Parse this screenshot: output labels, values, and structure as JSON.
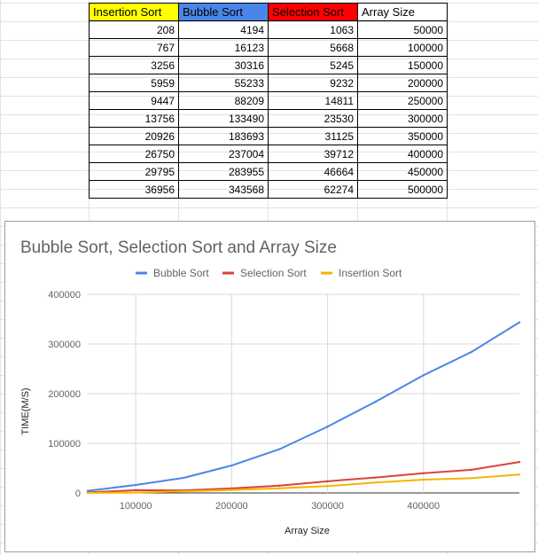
{
  "table": {
    "headers": [
      {
        "label": "Insertion Sort",
        "bg": "#ffff00"
      },
      {
        "label": "Bubble Sort",
        "bg": "#4a86e8"
      },
      {
        "label": "Selection Sort",
        "bg": "#ff0000"
      },
      {
        "label": "Array Size",
        "bg": "#ffffff"
      }
    ],
    "rows": [
      [
        "208",
        "4194",
        "1063",
        "50000"
      ],
      [
        "767",
        "16123",
        "5668",
        "100000"
      ],
      [
        "3256",
        "30316",
        "5245",
        "150000"
      ],
      [
        "5959",
        "55233",
        "9232",
        "200000"
      ],
      [
        "9447",
        "88209",
        "14811",
        "250000"
      ],
      [
        "13756",
        "133490",
        "23530",
        "300000"
      ],
      [
        "20926",
        "183693",
        "31125",
        "350000"
      ],
      [
        "26750",
        "237004",
        "39712",
        "400000"
      ],
      [
        "29795",
        "283955",
        "46664",
        "450000"
      ],
      [
        "36956",
        "343568",
        "62274",
        "500000"
      ]
    ]
  },
  "chart_data": {
    "type": "line",
    "title": "Bubble Sort, Selection Sort and Array Size",
    "xlabel": "Array Size",
    "ylabel": "TIME(M/S)",
    "xlim": [
      50000,
      500000
    ],
    "ylim": [
      0,
      400000
    ],
    "xticks": [
      "100000",
      "200000",
      "300000",
      "400000"
    ],
    "yticks": [
      "0",
      "100000",
      "200000",
      "300000",
      "400000"
    ],
    "grid": true,
    "legend_position": "top",
    "x": [
      50000,
      100000,
      150000,
      200000,
      250000,
      300000,
      350000,
      400000,
      450000,
      500000
    ],
    "series": [
      {
        "name": "Bubble Sort",
        "color": "#4a86e8",
        "values": [
          4194,
          16123,
          30316,
          55233,
          88209,
          133490,
          183693,
          237004,
          283955,
          343568
        ]
      },
      {
        "name": "Selection Sort",
        "color": "#db4437",
        "values": [
          1063,
          5668,
          5245,
          9232,
          14811,
          23530,
          31125,
          39712,
          46664,
          62274
        ]
      },
      {
        "name": "Insertion Sort",
        "color": "#f4b400",
        "values": [
          208,
          767,
          3256,
          5959,
          9447,
          13756,
          20926,
          26750,
          29795,
          36956
        ]
      }
    ]
  }
}
